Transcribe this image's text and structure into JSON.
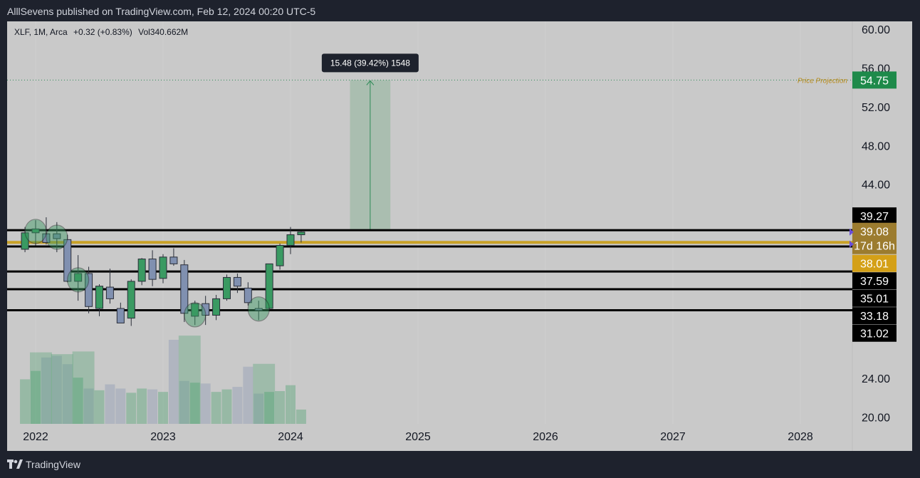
{
  "header": {
    "publish_text": "AlllSevens published on TradingView.com, Feb 12, 2024 00:20 UTC-5"
  },
  "legend": {
    "symbol": "XLF, 1M, Arca",
    "change": "+0.32 (+0.83%)",
    "volume": "Vol340.662M"
  },
  "footer": {
    "brand": "TradingView"
  },
  "colors": {
    "up": "#3a9a62",
    "down": "#8090b0",
    "gold": "#c9a227",
    "level_line": "#000000",
    "projection_fill": "#8fb59a",
    "projection_line": "#2e8b57",
    "badge_dark": "#000000",
    "badge_green": "#1e8a4a",
    "badge_gold": "#9c7c2f",
    "badge_gold_bright": "#d4a017",
    "grid": "#d0d0d0"
  },
  "chart_data": {
    "type": "candlestick",
    "interval": "1M",
    "y_axis": {
      "ticks": [
        "60.00",
        "56.00",
        "52.00",
        "48.00",
        "44.00",
        "24.00",
        "20.00"
      ],
      "range": [
        18.2,
        60.8
      ]
    },
    "x_axis": {
      "tick_labels": [
        "2022",
        "2023",
        "2024",
        "2025",
        "2026",
        "2027",
        "2028"
      ],
      "tick_years": [
        2022,
        2023,
        2024,
        2025,
        2026,
        2027,
        2028
      ]
    },
    "candles": [
      {
        "t": "2021-12",
        "o": 37.3,
        "h": 39.6,
        "l": 37.0,
        "c": 39.0
      },
      {
        "t": "2022-01",
        "o": 39.0,
        "h": 40.3,
        "l": 37.7,
        "c": 39.4
      },
      {
        "t": "2022-02",
        "o": 38.9,
        "h": 40.6,
        "l": 37.8,
        "c": 38.0
      },
      {
        "t": "2022-03",
        "o": 38.9,
        "h": 40.1,
        "l": 37.0,
        "c": 38.4
      },
      {
        "t": "2022-04",
        "o": 38.3,
        "h": 38.8,
        "l": 33.9,
        "c": 34.0
      },
      {
        "t": "2022-05",
        "o": 34.0,
        "h": 36.7,
        "l": 32.0,
        "c": 34.8
      },
      {
        "t": "2022-06",
        "o": 34.8,
        "h": 35.5,
        "l": 30.7,
        "c": 31.4
      },
      {
        "t": "2022-07",
        "o": 31.2,
        "h": 33.7,
        "l": 30.4,
        "c": 33.5
      },
      {
        "t": "2022-08",
        "o": 33.4,
        "h": 35.3,
        "l": 31.7,
        "c": 32.2
      },
      {
        "t": "2022-09",
        "o": 31.2,
        "h": 31.8,
        "l": 29.8,
        "c": 29.7
      },
      {
        "t": "2022-10",
        "o": 30.2,
        "h": 34.2,
        "l": 29.4,
        "c": 34.0
      },
      {
        "t": "2022-11",
        "o": 34.0,
        "h": 36.4,
        "l": 33.6,
        "c": 36.3
      },
      {
        "t": "2022-12",
        "o": 36.3,
        "h": 37.2,
        "l": 33.5,
        "c": 34.2
      },
      {
        "t": "2023-01",
        "o": 34.3,
        "h": 36.8,
        "l": 33.8,
        "c": 36.5
      },
      {
        "t": "2023-02",
        "o": 36.5,
        "h": 37.4,
        "l": 35.6,
        "c": 35.8
      },
      {
        "t": "2023-03",
        "o": 35.7,
        "h": 36.2,
        "l": 29.8,
        "c": 30.7
      },
      {
        "t": "2023-04",
        "o": 30.4,
        "h": 32.0,
        "l": 29.5,
        "c": 31.7
      },
      {
        "t": "2023-05",
        "o": 31.7,
        "h": 32.5,
        "l": 29.5,
        "c": 30.5
      },
      {
        "t": "2023-06",
        "o": 30.5,
        "h": 32.6,
        "l": 30.0,
        "c": 32.2
      },
      {
        "t": "2023-07",
        "o": 32.2,
        "h": 34.7,
        "l": 32.0,
        "c": 34.4
      },
      {
        "t": "2023-08",
        "o": 34.4,
        "h": 34.8,
        "l": 32.8,
        "c": 33.5
      },
      {
        "t": "2023-09",
        "o": 33.3,
        "h": 33.9,
        "l": 31.5,
        "c": 31.8
      },
      {
        "t": "2023-10",
        "o": 31.2,
        "h": 32.0,
        "l": 30.0,
        "c": 31.0
      },
      {
        "t": "2023-11",
        "o": 31.2,
        "h": 35.8,
        "l": 31.0,
        "c": 35.8
      },
      {
        "t": "2023-12",
        "o": 35.6,
        "h": 37.9,
        "l": 35.2,
        "c": 37.7
      },
      {
        "t": "2024-01",
        "o": 37.7,
        "h": 39.6,
        "l": 36.8,
        "c": 38.8
      },
      {
        "t": "2024-02",
        "o": 38.8,
        "h": 39.2,
        "l": 38.0,
        "c": 39.08
      }
    ],
    "volume_relative": [
      0.53,
      0.63,
      0.79,
      0.81,
      0.71,
      0.55,
      0.42,
      0.4,
      0.47,
      0.42,
      0.37,
      0.42,
      0.41,
      0.38,
      1.0,
      0.51,
      0.49,
      0.48,
      0.38,
      0.41,
      0.44,
      0.68,
      0.36,
      0.38,
      0.39,
      0.46,
      0.17
    ],
    "volume_highlights": [
      {
        "from": "2022-01",
        "to": "2022-02",
        "rel": 0.81
      },
      {
        "from": "2022-03",
        "to": "2022-04",
        "rel": 0.79
      },
      {
        "from": "2022-05",
        "to": "2022-06",
        "rel": 0.82
      },
      {
        "from": "2023-03",
        "to": "2023-04",
        "rel": 1.0
      },
      {
        "from": "2023-10",
        "to": "2023-11",
        "rel": 0.68
      }
    ],
    "levels": [
      {
        "price": 39.27,
        "label": "39.27",
        "style": "black"
      },
      {
        "price": 38.01,
        "label": "38.01",
        "style": "gold"
      },
      {
        "price": 37.59,
        "label": "37.59",
        "style": "black"
      },
      {
        "price": 35.01,
        "label": "35.01",
        "style": "black"
      },
      {
        "price": 33.18,
        "label": "33.18",
        "style": "black"
      },
      {
        "price": 31.02,
        "label": "31.02",
        "style": "black"
      }
    ],
    "current_price": {
      "price": 39.08,
      "label": "39.08",
      "countdown": "17d 16h"
    },
    "highlight_circles": [
      "2022-01",
      "2022-03",
      "2022-05",
      "2023-04",
      "2023-10"
    ],
    "projection": {
      "from_price": 39.27,
      "to_price": 54.75,
      "start": "2024-07",
      "end": "2024-10",
      "label": "15.48 (39.42%) 1548",
      "target_label": "54.75",
      "target_text": "Price Projection"
    }
  }
}
